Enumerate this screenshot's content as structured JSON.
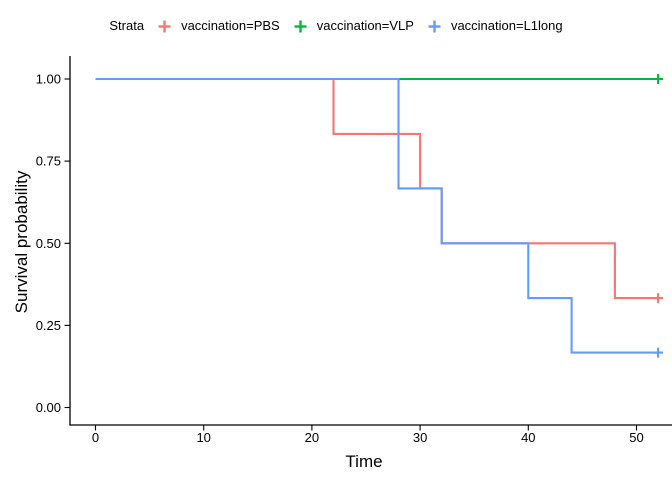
{
  "figure": {
    "background": "#FFFFFF",
    "text_color": "#000000",
    "axis_color": "#000000"
  },
  "chart_data": {
    "type": "line",
    "chart_style": "kaplan-meier-step-survival-curve",
    "title": "",
    "legend_title": "Strata",
    "legend_position": "top",
    "xlabel": "Time",
    "ylabel": "Survival probability",
    "xlim": [
      0,
      52
    ],
    "ylim": [
      0,
      1
    ],
    "grid": false,
    "x_ticks": [
      0,
      10,
      20,
      30,
      40,
      50
    ],
    "y_ticks": [
      {
        "value": 1.0,
        "label": "1.00"
      },
      {
        "value": 0.75,
        "label": "0.75"
      },
      {
        "value": 0.5,
        "label": "0.50"
      },
      {
        "value": 0.25,
        "label": "0.25"
      },
      {
        "value": 0.0,
        "label": "0.00"
      }
    ],
    "series": [
      {
        "name": "vaccination=PBS",
        "color": "#F8766D",
        "steps": [
          {
            "t": 0,
            "s": 1.0
          },
          {
            "t": 22,
            "s": 0.833
          },
          {
            "t": 30,
            "s": 0.667
          },
          {
            "t": 32,
            "s": 0.5
          },
          {
            "t": 48,
            "s": 0.333
          }
        ],
        "censored": [
          {
            "t": 52,
            "s": 0.333
          }
        ],
        "end_time": 52
      },
      {
        "name": "vaccination=VLP",
        "color": "#00BA38",
        "steps": [
          {
            "t": 0,
            "s": 1.0
          }
        ],
        "censored": [
          {
            "t": 52,
            "s": 1.0
          }
        ],
        "end_time": 52
      },
      {
        "name": "vaccination=L1long",
        "color": "#619CFF",
        "steps": [
          {
            "t": 0,
            "s": 1.0
          },
          {
            "t": 28,
            "s": 0.667
          },
          {
            "t": 32,
            "s": 0.5
          },
          {
            "t": 40,
            "s": 0.333
          },
          {
            "t": 44,
            "s": 0.167
          }
        ],
        "censored": [
          {
            "t": 52,
            "s": 0.167
          }
        ],
        "end_time": 52
      }
    ]
  }
}
